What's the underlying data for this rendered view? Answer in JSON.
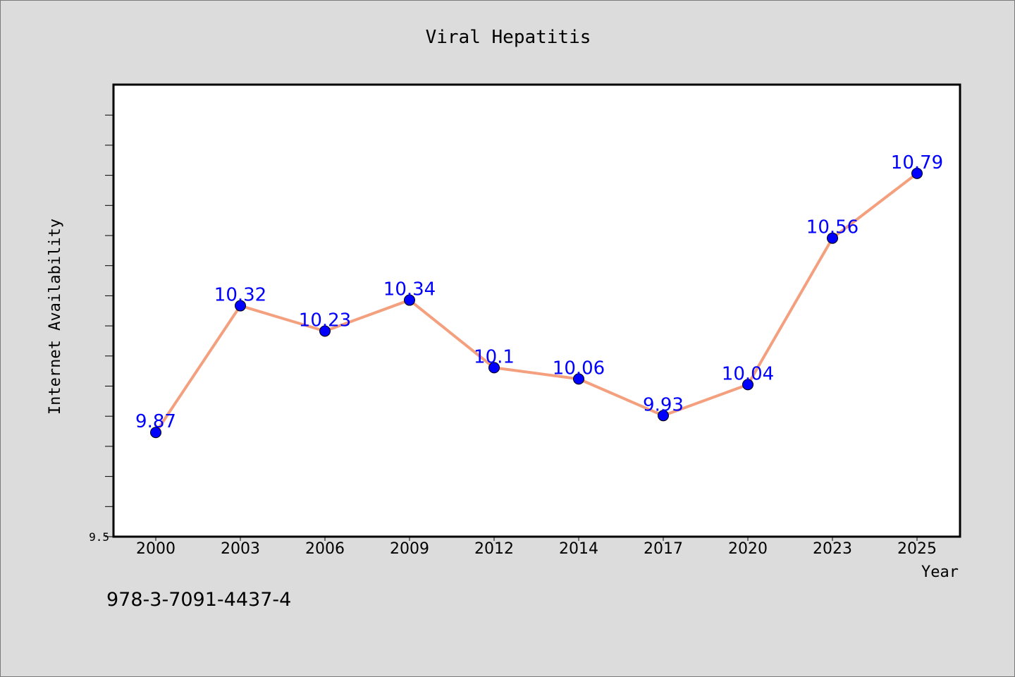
{
  "chart_data": {
    "type": "line",
    "title": "Viral Hepatitis",
    "xlabel": "Year",
    "ylabel": "Internet Availability",
    "categories": [
      "2000",
      "2003",
      "2006",
      "2009",
      "2012",
      "2014",
      "2017",
      "2020",
      "2023",
      "2025"
    ],
    "series": [
      {
        "values": [
          9.87,
          10.32,
          10.23,
          10.34,
          10.1,
          10.06,
          9.93,
          10.04,
          10.56,
          10.79
        ],
        "labels": [
          "9.87",
          "10.32",
          "10.23",
          "10.34",
          "10.1",
          "10.06",
          "9.93",
          "10.04",
          "10.56",
          "10.79"
        ],
        "line_color": "#f4a07e",
        "marker_color": "#0000ff"
      }
    ],
    "ylim": [
      9.5,
      11.0
    ],
    "yticks": [
      "9.5"
    ],
    "grid": false,
    "legend": false
  },
  "footer": {
    "text": "978-3-7091-4437-4"
  }
}
